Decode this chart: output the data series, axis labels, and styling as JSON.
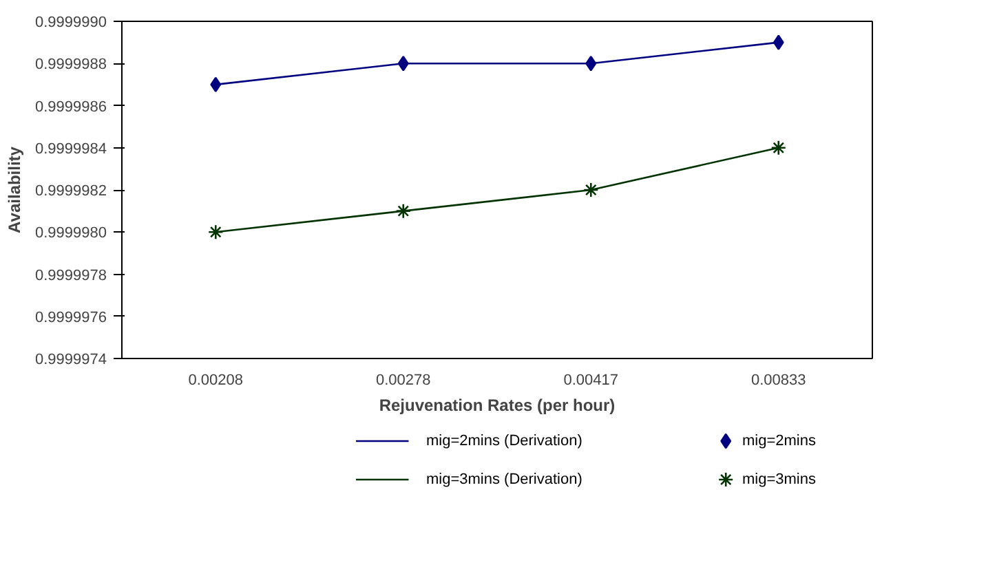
{
  "chart_data": {
    "type": "line",
    "xlabel": "Rejuvenation Rates (per hour)",
    "ylabel": "Availability",
    "categories": [
      "0.00208",
      "0.00278",
      "0.00417",
      "0.00833"
    ],
    "series": [
      {
        "name": "mig=2mins (Derivation)",
        "color": "#000080",
        "marker": "none",
        "values": [
          0.9999987,
          0.9999988,
          0.9999988,
          0.9999989
        ]
      },
      {
        "name": "mig=2mins",
        "type": "scatter",
        "color": "#000080",
        "marker": "diamond",
        "values": [
          0.9999987,
          0.9999988,
          0.9999988,
          0.9999989
        ]
      },
      {
        "name": "mig=3mins (Derivation)",
        "color": "#003300",
        "marker": "none",
        "values": [
          0.999998,
          0.9999981,
          0.9999982,
          0.9999984
        ]
      },
      {
        "name": "mig=3mins",
        "type": "scatter",
        "color": "#003300",
        "marker": "cross",
        "values": [
          0.999998,
          0.9999981,
          0.9999982,
          0.9999984
        ]
      }
    ],
    "ylim": [
      0.9999974,
      0.999999
    ],
    "yticks": [
      {
        "value": 0.9999974,
        "label": "0.9999974"
      },
      {
        "value": 0.9999976,
        "label": "0.9999976"
      },
      {
        "value": 0.9999978,
        "label": "0.9999978"
      },
      {
        "value": 0.999998,
        "label": "0.9999980"
      },
      {
        "value": 0.9999982,
        "label": "0.9999982"
      },
      {
        "value": 0.9999984,
        "label": "0.9999984"
      },
      {
        "value": 0.9999986,
        "label": "0.9999986"
      },
      {
        "value": 0.9999988,
        "label": "0.9999988"
      },
      {
        "value": 0.999999,
        "label": "0.9999990"
      }
    ],
    "grid": false,
    "legend": "bottom"
  }
}
